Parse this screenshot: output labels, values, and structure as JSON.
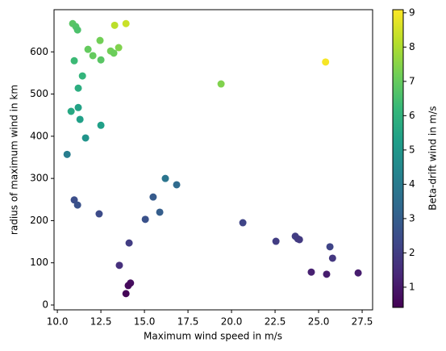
{
  "chart_data": {
    "type": "scatter",
    "xlabel": "Maximum wind speed in m/s",
    "ylabel": "radius of maximum wind in km",
    "colorbar_label": "Beta-drift wind in m/s",
    "colormap": "viridis",
    "xlim": [
      9.81,
      28.1
    ],
    "ylim": [
      -11.5,
      700
    ],
    "clim": [
      0.41,
      9.09
    ],
    "xticks": [
      {
        "value": 10,
        "label": "10.0"
      },
      12.5,
      {
        "value": 15,
        "label": "15.0"
      },
      17.5,
      {
        "value": 20,
        "label": "20.0"
      },
      22.5,
      {
        "value": 25,
        "label": "25.0"
      },
      27.5
    ],
    "yticks": [
      0,
      100,
      200,
      300,
      400,
      500,
      600
    ],
    "cticks": [
      1,
      2,
      3,
      4,
      5,
      6,
      7,
      8,
      9
    ],
    "series": [
      {
        "x": [
          10.88,
          11.06,
          11.16,
          10.97,
          11.76,
          12.04,
          12.45,
          12.5,
          13.06,
          13.24,
          13.52,
          13.29,
          13.94,
          11.44,
          11.2,
          11.2,
          10.79,
          11.3,
          12.5,
          11.62,
          10.56,
          19.4,
          25.4,
          16.2,
          16.85,
          15.5,
          15.88,
          15.05,
          10.97,
          11.16,
          12.4,
          14.12,
          13.56,
          20.65,
          22.55,
          23.66,
          23.8,
          23.9,
          25.65,
          25.8,
          24.58,
          25.46,
          27.27,
          14.2,
          14.07,
          13.94
        ],
        "values": [
          667,
          660,
          652,
          579,
          606,
          591,
          627,
          581,
          602,
          597,
          610,
          663,
          667,
          543,
          514,
          468,
          459,
          440,
          426,
          396,
          357,
          524,
          576,
          300,
          285,
          256,
          220,
          203,
          249,
          237,
          216,
          147,
          94,
          195,
          151,
          163,
          157,
          155,
          138,
          111,
          78,
          73,
          76,
          52,
          46,
          27
        ],
        "c": [
          6.8,
          6.7,
          6.6,
          6.3,
          7.0,
          7.0,
          7.2,
          6.8,
          7.2,
          7.1,
          7.4,
          8.2,
          8.4,
          6.1,
          5.8,
          5.4,
          5.6,
          5.3,
          5.3,
          4.9,
          4.1,
          7.4,
          9.0,
          3.8,
          3.4,
          2.9,
          3.0,
          2.6,
          2.5,
          2.6,
          2.4,
          2.0,
          1.6,
          2.2,
          2.0,
          2.0,
          2.0,
          1.9,
          2.2,
          1.8,
          1.2,
          1.1,
          1.1,
          0.7,
          0.6,
          0.5
        ]
      }
    ]
  }
}
